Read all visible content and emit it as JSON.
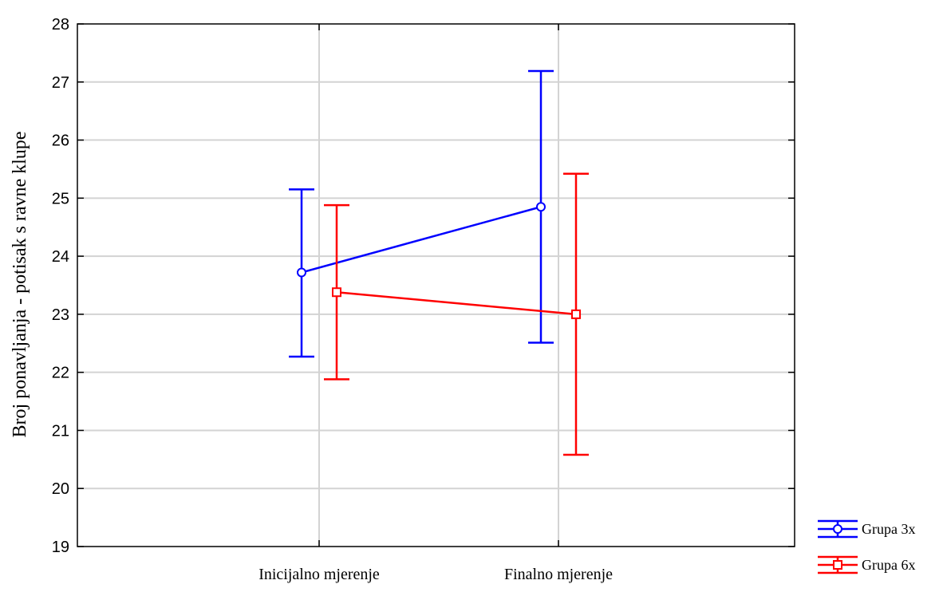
{
  "chart_data": {
    "type": "line",
    "title": "",
    "xlabel": "",
    "ylabel": "Broj ponavljanja - potisak s ravne klupe",
    "categories": [
      "Inicijalno mjerenje",
      "Finalno mjerenje"
    ],
    "ylim": [
      19,
      28
    ],
    "yticks": [
      19,
      20,
      21,
      22,
      23,
      24,
      25,
      26,
      27,
      28
    ],
    "grid": true,
    "legend_position": "bottom-right outside",
    "series": [
      {
        "name": "Grupa 3x",
        "color": "#0000ff",
        "marker": "circle",
        "values": [
          23.72,
          24.85
        ],
        "error_low": [
          22.27,
          22.51
        ],
        "error_high": [
          25.15,
          27.19
        ]
      },
      {
        "name": "Grupa 6x",
        "color": "#ff0000",
        "marker": "square",
        "values": [
          23.38,
          23.0
        ],
        "error_low": [
          21.88,
          20.58
        ],
        "error_high": [
          24.88,
          25.42
        ]
      }
    ]
  }
}
